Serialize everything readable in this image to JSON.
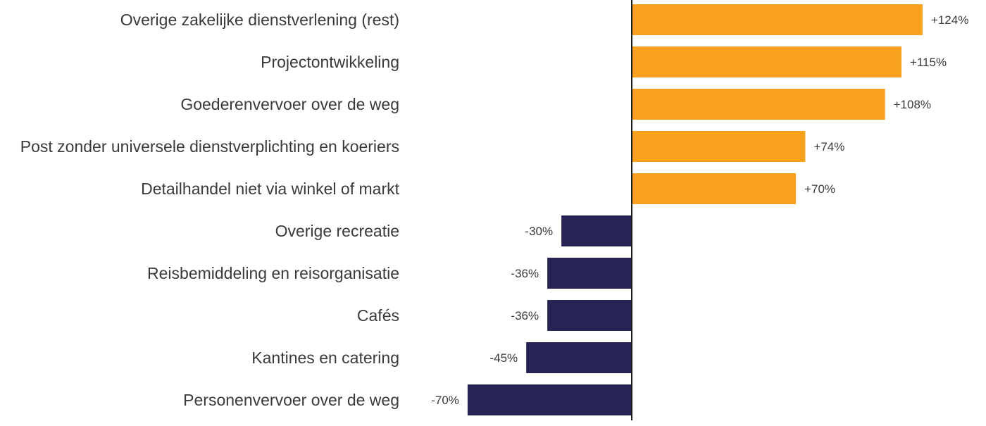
{
  "chart_data": {
    "type": "bar",
    "orientation": "horizontal",
    "categories": [
      "Overige zakelijke dienstverlening (rest)",
      "Projectontwikkeling",
      "Goederenvervoer over de weg",
      "Post zonder universele dienstverplichting en koeriers",
      "Detailhandel niet via winkel of markt",
      "Overige recreatie",
      "Reisbemiddeling en reisorganisatie",
      "Cafés",
      "Kantines en catering",
      "Personenvervoer over de weg"
    ],
    "values": [
      124,
      115,
      108,
      74,
      70,
      -30,
      -36,
      -36,
      -45,
      -70
    ],
    "value_labels": [
      "+124%",
      "+115%",
      "+108%",
      "+74%",
      "+70%",
      "-30%",
      "-36%",
      "-36%",
      "-45%",
      "-70%"
    ],
    "unit": "%",
    "colors": {
      "positive": "#F7A11D",
      "negative": "#252454",
      "axis": "#1a1a1a"
    },
    "grid": false,
    "legend": "none"
  }
}
